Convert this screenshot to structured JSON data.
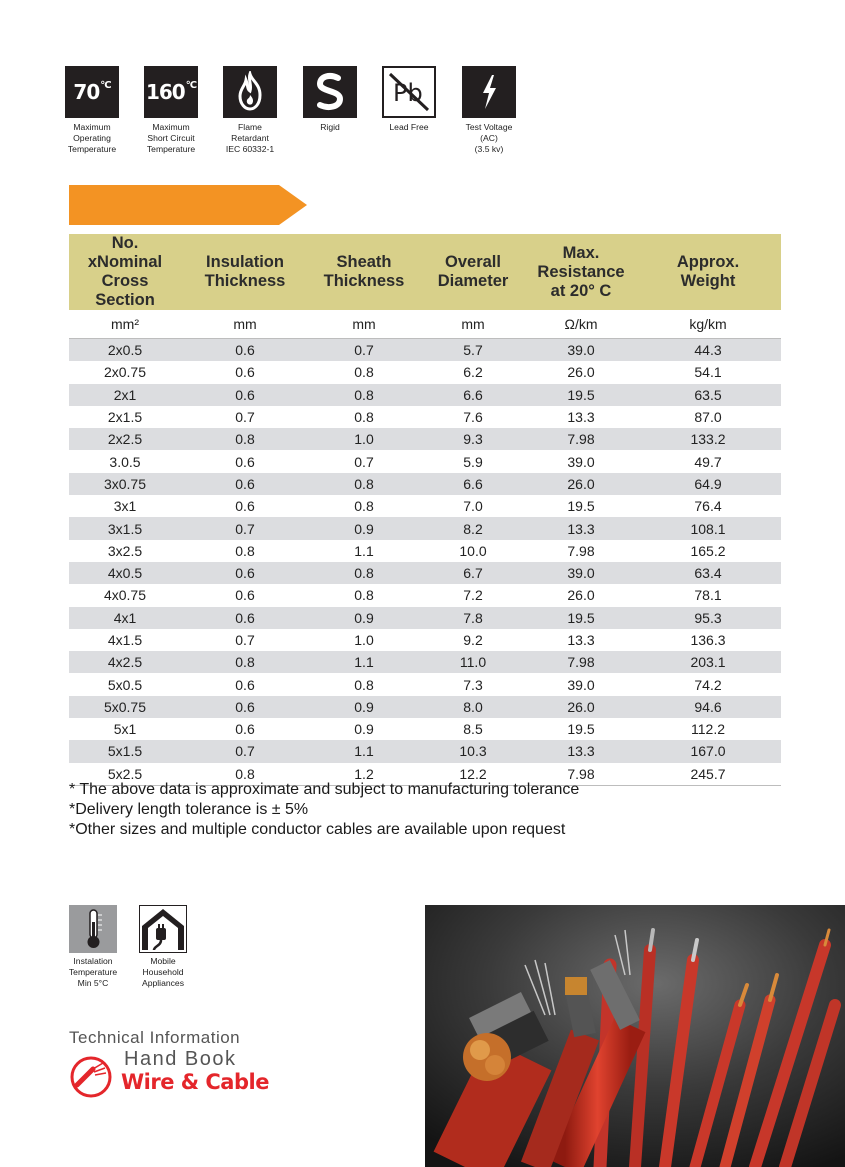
{
  "icons": [
    {
      "name": "max-operating-temp",
      "glyph": "70",
      "unit": "°C",
      "caption": [
        "Maximum",
        "Operating",
        "Temperature"
      ]
    },
    {
      "name": "short-circuit-temp",
      "glyph": "160",
      "unit": "°C",
      "caption": [
        "Maximum",
        "Short Circuit",
        "Temperature"
      ]
    },
    {
      "name": "flame-retardant",
      "caption": [
        "Flame",
        "Retardant",
        "IEC 60332-1"
      ]
    },
    {
      "name": "rigid",
      "caption": [
        "Rigid"
      ]
    },
    {
      "name": "lead-free",
      "glyph": "Pb",
      "caption": [
        "Lead Free"
      ]
    },
    {
      "name": "test-voltage",
      "caption": [
        "Test Voltage",
        "(AC)",
        "(3.5 kv)"
      ]
    }
  ],
  "accent_color": "#f39323",
  "header_color": "#d8d08a",
  "table": {
    "headers": [
      [
        "No. xNominal",
        "Cross Section"
      ],
      [
        "Insulation",
        "Thickness"
      ],
      [
        "Sheath",
        "Thickness"
      ],
      [
        "Overall",
        "Diameter"
      ],
      [
        "Max.",
        "Resistance",
        "at 20° C"
      ],
      [
        "Approx.",
        "Weight"
      ]
    ],
    "units": [
      "mm²",
      "mm",
      "mm",
      "mm",
      "Ω/km",
      "kg/km"
    ],
    "rows": [
      [
        "2x0.5",
        "0.6",
        "0.7",
        "5.7",
        "39.0",
        "44.3"
      ],
      [
        "2x0.75",
        "0.6",
        "0.8",
        "6.2",
        "26.0",
        "54.1"
      ],
      [
        "2x1",
        "0.6",
        "0.8",
        "6.6",
        "19.5",
        "63.5"
      ],
      [
        "2x1.5",
        "0.7",
        "0.8",
        "7.6",
        "13.3",
        "87.0"
      ],
      [
        "2x2.5",
        "0.8",
        "1.0",
        "9.3",
        "7.98",
        "133.2"
      ],
      [
        "3.0.5",
        "0.6",
        "0.7",
        "5.9",
        "39.0",
        "49.7"
      ],
      [
        "3x0.75",
        "0.6",
        "0.8",
        "6.6",
        "26.0",
        "64.9"
      ],
      [
        "3x1",
        "0.6",
        "0.8",
        "7.0",
        "19.5",
        "76.4"
      ],
      [
        "3x1.5",
        "0.7",
        "0.9",
        "8.2",
        "13.3",
        "108.1"
      ],
      [
        "3x2.5",
        "0.8",
        "1.1",
        "10.0",
        "7.98",
        "165.2"
      ],
      [
        "4x0.5",
        "0.6",
        "0.8",
        "6.7",
        "39.0",
        "63.4"
      ],
      [
        "4x0.75",
        "0.6",
        "0.8",
        "7.2",
        "26.0",
        "78.1"
      ],
      [
        "4x1",
        "0.6",
        "0.9",
        "7.8",
        "19.5",
        "95.3"
      ],
      [
        "4x1.5",
        "0.7",
        "1.0",
        "9.2",
        "13.3",
        "136.3"
      ],
      [
        "4x2.5",
        "0.8",
        "1.1",
        "11.0",
        "7.98",
        "203.1"
      ],
      [
        "5x0.5",
        "0.6",
        "0.8",
        "7.3",
        "39.0",
        "74.2"
      ],
      [
        "5x0.75",
        "0.6",
        "0.9",
        "8.0",
        "26.0",
        "94.6"
      ],
      [
        "5x1",
        "0.6",
        "0.9",
        "8.5",
        "19.5",
        "112.2"
      ],
      [
        "5x1.5",
        "0.7",
        "1.1",
        "10.3",
        "13.3",
        "167.0"
      ],
      [
        "5x2.5",
        "0.8",
        "1.2",
        "12.2",
        "7.98",
        "245.7"
      ]
    ]
  },
  "notes": [
    "* The above data is approximate and subject to manufacturing tolerance",
    "*Delivery length tolerance is ± 5%",
    "*Other sizes and multiple conductor cables are available upon request"
  ],
  "bottom_icons": [
    {
      "name": "thermometer",
      "caption": [
        "Instalation",
        "Temperature",
        "Min 5°C"
      ]
    },
    {
      "name": "household",
      "caption": [
        "Mobile",
        "Household",
        "Appliances"
      ]
    }
  ],
  "handbook": {
    "line1": "Technical  Information",
    "line2": "Hand Book",
    "line3": "Wire & Cable"
  }
}
